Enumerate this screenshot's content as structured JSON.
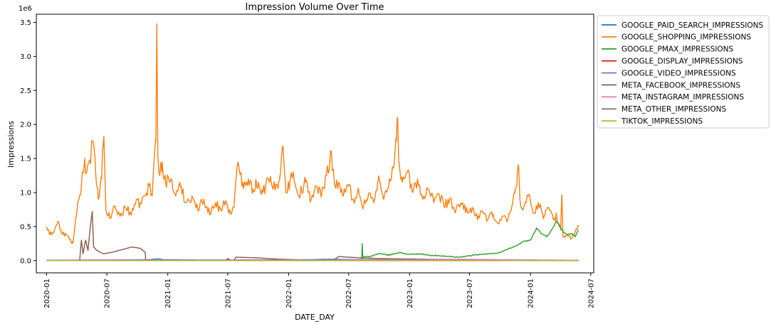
{
  "chart_data": {
    "type": "line",
    "title": "Impression Volume Over Time",
    "xlabel": "DATE_DAY",
    "ylabel": "Impressions",
    "y_offset_label": "1e6",
    "y_scale_multiplier": 1000000,
    "x_type": "date",
    "xlim": [
      "2019-12-01",
      "2024-07-10"
    ],
    "ylim": [
      -0.18,
      3.62
    ],
    "x_ticks": [
      "2020-01",
      "2020-07",
      "2021-01",
      "2021-07",
      "2022-01",
      "2022-07",
      "2023-01",
      "2023-07",
      "2024-01",
      "2024-07"
    ],
    "y_ticks": [
      0.0,
      0.5,
      1.0,
      1.5,
      2.0,
      2.5,
      3.0,
      3.5
    ],
    "grid": false,
    "legend_position": "outside-right-top",
    "series": [
      {
        "name": "GOOGLE_PAID_SEARCH_IMPRESSIONS",
        "color": "#1f77b4",
        "points": [
          [
            "2020-01-01",
            0.005
          ],
          [
            "2020-05-01",
            0.008
          ],
          [
            "2020-08-01",
            0.01
          ],
          [
            "2020-11-01",
            0.012
          ],
          [
            "2020-12-05",
            0.025
          ],
          [
            "2020-12-20",
            0.012
          ],
          [
            "2021-03-01",
            0.01
          ],
          [
            "2021-06-01",
            0.008
          ],
          [
            "2021-09-01",
            0.01
          ],
          [
            "2021-12-01",
            0.01
          ],
          [
            "2022-03-01",
            0.012
          ],
          [
            "2022-05-01",
            0.02
          ],
          [
            "2022-07-01",
            0.015
          ],
          [
            "2022-10-01",
            0.012
          ],
          [
            "2023-01-01",
            0.01
          ],
          [
            "2023-04-01",
            0.008
          ],
          [
            "2023-07-01",
            0.008
          ],
          [
            "2023-10-01",
            0.006
          ],
          [
            "2024-01-01",
            0.006
          ],
          [
            "2024-05-25",
            0.005
          ]
        ]
      },
      {
        "name": "GOOGLE_SHOPPING_IMPRESSIONS",
        "color": "#ff7f0e",
        "points": [
          [
            "2020-01-01",
            0.5
          ],
          [
            "2020-01-10",
            0.38
          ],
          [
            "2020-01-25",
            0.45
          ],
          [
            "2020-02-05",
            0.58
          ],
          [
            "2020-02-15",
            0.4
          ],
          [
            "2020-03-01",
            0.38
          ],
          [
            "2020-03-20",
            0.25
          ],
          [
            "2020-04-01",
            0.7
          ],
          [
            "2020-04-15",
            1.1
          ],
          [
            "2020-04-25",
            1.5
          ],
          [
            "2020-05-01",
            1.3
          ],
          [
            "2020-05-10",
            1.48
          ],
          [
            "2020-05-20",
            1.75
          ],
          [
            "2020-05-28",
            1.3
          ],
          [
            "2020-06-05",
            0.9
          ],
          [
            "2020-06-15",
            1.2
          ],
          [
            "2020-06-22",
            1.82
          ],
          [
            "2020-06-28",
            0.75
          ],
          [
            "2020-07-10",
            0.62
          ],
          [
            "2020-07-25",
            0.8
          ],
          [
            "2020-08-10",
            0.65
          ],
          [
            "2020-08-25",
            0.78
          ],
          [
            "2020-09-10",
            0.7
          ],
          [
            "2020-09-25",
            0.82
          ],
          [
            "2020-10-10",
            0.85
          ],
          [
            "2020-10-25",
            0.95
          ],
          [
            "2020-11-05",
            1.1
          ],
          [
            "2020-11-15",
            0.95
          ],
          [
            "2020-11-22",
            1.6
          ],
          [
            "2020-11-26",
            1.75
          ],
          [
            "2020-11-29",
            3.48
          ],
          [
            "2020-12-02",
            1.55
          ],
          [
            "2020-12-08",
            1.25
          ],
          [
            "2020-12-15",
            1.45
          ],
          [
            "2020-12-25",
            1.15
          ],
          [
            "2021-01-10",
            1.2
          ],
          [
            "2021-01-25",
            0.95
          ],
          [
            "2021-02-10",
            1.1
          ],
          [
            "2021-02-25",
            0.85
          ],
          [
            "2021-03-15",
            0.95
          ],
          [
            "2021-04-01",
            0.75
          ],
          [
            "2021-04-20",
            0.9
          ],
          [
            "2021-05-10",
            0.68
          ],
          [
            "2021-05-25",
            0.85
          ],
          [
            "2021-06-10",
            0.75
          ],
          [
            "2021-06-25",
            0.88
          ],
          [
            "2021-07-10",
            0.68
          ],
          [
            "2021-07-20",
            0.78
          ],
          [
            "2021-08-01",
            1.45
          ],
          [
            "2021-08-15",
            1.15
          ],
          [
            "2021-09-01",
            1.2
          ],
          [
            "2021-09-15",
            1.05
          ],
          [
            "2021-10-01",
            1.15
          ],
          [
            "2021-10-15",
            1.0
          ],
          [
            "2021-11-01",
            1.2
          ],
          [
            "2021-11-15",
            1.05
          ],
          [
            "2021-12-01",
            1.15
          ],
          [
            "2021-12-15",
            1.68
          ],
          [
            "2021-12-25",
            1.0
          ],
          [
            "2022-01-15",
            1.3
          ],
          [
            "2022-02-01",
            0.95
          ],
          [
            "2022-02-20",
            1.15
          ],
          [
            "2022-03-10",
            0.9
          ],
          [
            "2022-03-25",
            1.1
          ],
          [
            "2022-04-10",
            0.95
          ],
          [
            "2022-04-25",
            1.25
          ],
          [
            "2022-05-10",
            1.6
          ],
          [
            "2022-05-20",
            1.1
          ],
          [
            "2022-06-01",
            1.15
          ],
          [
            "2022-06-15",
            0.95
          ],
          [
            "2022-07-01",
            1.1
          ],
          [
            "2022-07-15",
            0.9
          ],
          [
            "2022-08-01",
            1.0
          ],
          [
            "2022-08-15",
            0.8
          ],
          [
            "2022-09-01",
            1.0
          ],
          [
            "2022-09-15",
            0.85
          ],
          [
            "2022-10-01",
            1.2
          ],
          [
            "2022-10-15",
            0.9
          ],
          [
            "2022-11-01",
            1.2
          ],
          [
            "2022-11-15",
            1.4
          ],
          [
            "2022-11-22",
            1.75
          ],
          [
            "2022-11-26",
            2.1
          ],
          [
            "2022-11-30",
            1.45
          ],
          [
            "2022-12-10",
            1.15
          ],
          [
            "2022-12-25",
            1.3
          ],
          [
            "2023-01-10",
            1.0
          ],
          [
            "2023-01-25",
            1.2
          ],
          [
            "2023-02-10",
            0.9
          ],
          [
            "2023-02-25",
            1.05
          ],
          [
            "2023-03-15",
            0.85
          ],
          [
            "2023-04-01",
            0.95
          ],
          [
            "2023-04-15",
            0.8
          ],
          [
            "2023-05-01",
            0.9
          ],
          [
            "2023-05-20",
            0.72
          ],
          [
            "2023-06-10",
            0.85
          ],
          [
            "2023-06-25",
            0.7
          ],
          [
            "2023-07-10",
            0.78
          ],
          [
            "2023-07-25",
            0.6
          ],
          [
            "2023-08-10",
            0.72
          ],
          [
            "2023-08-25",
            0.6
          ],
          [
            "2023-09-10",
            0.68
          ],
          [
            "2023-09-25",
            0.55
          ],
          [
            "2023-10-10",
            0.65
          ],
          [
            "2023-10-25",
            0.6
          ],
          [
            "2023-11-05",
            0.78
          ],
          [
            "2023-11-15",
            1.0
          ],
          [
            "2023-11-22",
            1.25
          ],
          [
            "2023-11-26",
            1.4
          ],
          [
            "2023-11-30",
            0.9
          ],
          [
            "2023-12-10",
            0.75
          ],
          [
            "2023-12-25",
            0.95
          ],
          [
            "2024-01-10",
            0.7
          ],
          [
            "2024-01-25",
            0.85
          ],
          [
            "2024-02-10",
            0.65
          ],
          [
            "2024-02-25",
            0.78
          ],
          [
            "2024-03-10",
            0.6
          ],
          [
            "2024-03-20",
            0.65
          ],
          [
            "2024-03-25",
            0.55
          ],
          [
            "2024-04-01",
            0.45
          ],
          [
            "2024-04-05",
            0.97
          ],
          [
            "2024-04-08",
            0.35
          ],
          [
            "2024-04-20",
            0.38
          ],
          [
            "2024-05-05",
            0.33
          ],
          [
            "2024-05-15",
            0.42
          ],
          [
            "2024-05-25",
            0.5
          ]
        ]
      },
      {
        "name": "GOOGLE_PMAX_IMPRESSIONS",
        "color": "#2ca02c",
        "points": [
          [
            "2022-08-10",
            0.0
          ],
          [
            "2022-08-11",
            0.25
          ],
          [
            "2022-08-13",
            0.05
          ],
          [
            "2022-09-01",
            0.06
          ],
          [
            "2022-10-01",
            0.1
          ],
          [
            "2022-11-01",
            0.08
          ],
          [
            "2022-12-01",
            0.12
          ],
          [
            "2023-01-01",
            0.09
          ],
          [
            "2023-02-01",
            0.1
          ],
          [
            "2023-03-01",
            0.08
          ],
          [
            "2023-04-01",
            0.07
          ],
          [
            "2023-05-01",
            0.06
          ],
          [
            "2023-06-01",
            0.05
          ],
          [
            "2023-07-01",
            0.07
          ],
          [
            "2023-08-01",
            0.09
          ],
          [
            "2023-09-01",
            0.1
          ],
          [
            "2023-10-01",
            0.12
          ],
          [
            "2023-11-01",
            0.18
          ],
          [
            "2023-11-20",
            0.22
          ],
          [
            "2023-12-10",
            0.28
          ],
          [
            "2024-01-01",
            0.3
          ],
          [
            "2024-01-20",
            0.48
          ],
          [
            "2024-02-01",
            0.4
          ],
          [
            "2024-02-20",
            0.35
          ],
          [
            "2024-03-05",
            0.45
          ],
          [
            "2024-03-20",
            0.58
          ],
          [
            "2024-04-05",
            0.45
          ],
          [
            "2024-04-20",
            0.38
          ],
          [
            "2024-05-05",
            0.4
          ],
          [
            "2024-05-15",
            0.35
          ],
          [
            "2024-05-25",
            0.45
          ]
        ]
      },
      {
        "name": "GOOGLE_DISPLAY_IMPRESSIONS",
        "color": "#d62728",
        "points": [
          [
            "2020-01-01",
            0.0
          ],
          [
            "2021-06-25",
            0.0
          ],
          [
            "2021-07-01",
            0.03
          ],
          [
            "2021-07-10",
            0.0
          ],
          [
            "2022-01-01",
            0.0
          ],
          [
            "2023-10-01",
            0.0
          ],
          [
            "2023-12-01",
            0.01
          ],
          [
            "2024-05-25",
            0.0
          ]
        ]
      },
      {
        "name": "GOOGLE_VIDEO_IMPRESSIONS",
        "color": "#9467bd",
        "points": [
          [
            "2020-01-01",
            0.0
          ],
          [
            "2022-01-01",
            0.0
          ],
          [
            "2023-06-01",
            0.005
          ],
          [
            "2024-05-25",
            0.0
          ]
        ]
      },
      {
        "name": "META_FACEBOOK_IMPRESSIONS",
        "color": "#8c564b",
        "points": [
          [
            "2020-01-01",
            0.0
          ],
          [
            "2020-04-10",
            0.0
          ],
          [
            "2020-04-15",
            0.3
          ],
          [
            "2020-04-20",
            0.1
          ],
          [
            "2020-04-28",
            0.3
          ],
          [
            "2020-05-05",
            0.15
          ],
          [
            "2020-05-12",
            0.5
          ],
          [
            "2020-05-18",
            0.72
          ],
          [
            "2020-05-22",
            0.2
          ],
          [
            "2020-06-01",
            0.15
          ],
          [
            "2020-06-20",
            0.1
          ],
          [
            "2020-07-15",
            0.12
          ],
          [
            "2020-08-15",
            0.16
          ],
          [
            "2020-09-15",
            0.2
          ],
          [
            "2020-10-10",
            0.18
          ],
          [
            "2020-10-25",
            0.12
          ],
          [
            "2020-10-26",
            0.0
          ],
          [
            "2021-07-20",
            0.0
          ],
          [
            "2021-07-25",
            0.05
          ],
          [
            "2021-10-01",
            0.04
          ],
          [
            "2021-12-01",
            0.02
          ],
          [
            "2022-05-15",
            0.0
          ],
          [
            "2022-06-01",
            0.06
          ],
          [
            "2022-08-01",
            0.04
          ],
          [
            "2022-10-01",
            0.03
          ],
          [
            "2023-03-01",
            0.02
          ],
          [
            "2023-07-01",
            0.01
          ],
          [
            "2023-12-01",
            0.005
          ],
          [
            "2024-05-25",
            0.0
          ]
        ]
      },
      {
        "name": "META_INSTAGRAM_IMPRESSIONS",
        "color": "#e377c2",
        "points": [
          [
            "2020-01-01",
            0.0
          ],
          [
            "2020-05-01",
            0.01
          ],
          [
            "2021-01-01",
            0.005
          ],
          [
            "2022-06-01",
            0.01
          ],
          [
            "2023-01-01",
            0.015
          ],
          [
            "2023-06-01",
            0.02
          ],
          [
            "2024-01-01",
            0.01
          ],
          [
            "2024-05-25",
            0.005
          ]
        ]
      },
      {
        "name": "META_OTHER_IMPRESSIONS",
        "color": "#7f7f7f",
        "points": [
          [
            "2020-01-01",
            0.0
          ],
          [
            "2021-01-01",
            0.002
          ],
          [
            "2022-01-01",
            0.004
          ],
          [
            "2023-01-01",
            0.006
          ],
          [
            "2024-01-01",
            0.003
          ],
          [
            "2024-05-25",
            0.002
          ]
        ]
      },
      {
        "name": "TIKTOK_IMPRESSIONS",
        "color": "#bcbd22",
        "points": [
          [
            "2020-01-01",
            0.0
          ],
          [
            "2022-01-01",
            0.0
          ],
          [
            "2023-01-01",
            0.002
          ],
          [
            "2024-01-01",
            0.003
          ],
          [
            "2024-05-25",
            0.002
          ]
        ]
      }
    ]
  }
}
